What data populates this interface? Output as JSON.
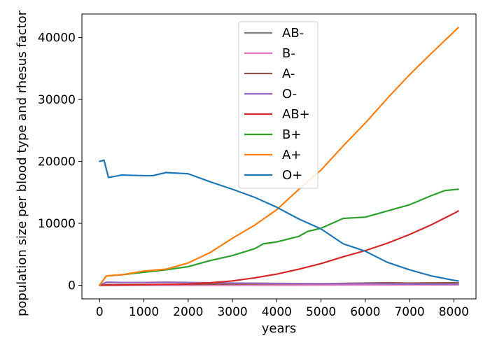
{
  "chart_data": {
    "type": "line",
    "title": "",
    "xlabel": "years",
    "ylabel": "population size per blood type and rhesus factor",
    "xlim": [
      -400,
      8500
    ],
    "ylim": [
      -2200,
      43800
    ],
    "xticks": [
      0,
      1000,
      2000,
      3000,
      4000,
      5000,
      6000,
      7000,
      8000
    ],
    "yticks": [
      0,
      10000,
      20000,
      30000,
      40000
    ],
    "legend_position": "upper center",
    "grid": false,
    "series": [
      {
        "name": "AB-",
        "color": "#7f7f7f",
        "x": [
          0,
          2000,
          4000,
          6000,
          8100
        ],
        "y": [
          0,
          20,
          50,
          80,
          100
        ]
      },
      {
        "name": "B-",
        "color": "#e377c2",
        "x": [
          0,
          2000,
          4000,
          6000,
          8100
        ],
        "y": [
          0,
          10,
          30,
          60,
          80
        ]
      },
      {
        "name": "A-",
        "color": "#8c564b",
        "x": [
          0,
          150,
          1000,
          2000,
          3000,
          4000,
          5000,
          6000,
          6500,
          7000,
          7500,
          8100
        ],
        "y": [
          0,
          100,
          120,
          150,
          200,
          250,
          250,
          350,
          400,
          350,
          380,
          400
        ]
      },
      {
        "name": "O-",
        "color": "#9467bd",
        "x": [
          0,
          150,
          500,
          1000,
          1500,
          2000,
          3000,
          4000,
          5000,
          6000,
          7000,
          8100
        ],
        "y": [
          0,
          500,
          450,
          450,
          500,
          450,
          350,
          300,
          250,
          250,
          200,
          150
        ]
      },
      {
        "name": "AB+",
        "color": "#d62728",
        "x": [
          0,
          1000,
          2000,
          2500,
          3000,
          3500,
          4000,
          4500,
          5000,
          5500,
          6000,
          6500,
          7000,
          7500,
          8000,
          8100
        ],
        "y": [
          0,
          100,
          200,
          400,
          700,
          1200,
          1800,
          2600,
          3500,
          4600,
          5600,
          6800,
          8200,
          9800,
          11600,
          12000
        ]
      },
      {
        "name": "B+",
        "color": "#2ca02c",
        "x": [
          0,
          150,
          500,
          1000,
          1500,
          2000,
          2500,
          3000,
          3500,
          3700,
          4000,
          4500,
          4700,
          5000,
          5500,
          6000,
          6500,
          7000,
          7500,
          7800,
          8100
        ],
        "y": [
          0,
          1500,
          1700,
          2100,
          2500,
          3000,
          4000,
          4800,
          5900,
          6700,
          7000,
          7900,
          8700,
          9200,
          10800,
          11000,
          12000,
          13000,
          14500,
          15300,
          15500
        ]
      },
      {
        "name": "A+",
        "color": "#ff7f0e",
        "x": [
          0,
          150,
          500,
          1000,
          1500,
          2000,
          2500,
          3000,
          3500,
          4000,
          4500,
          5000,
          5500,
          6000,
          6500,
          7000,
          7500,
          8100
        ],
        "y": [
          0,
          1500,
          1700,
          2300,
          2600,
          3600,
          5300,
          7600,
          9700,
          12200,
          15500,
          18600,
          22500,
          26200,
          30200,
          34000,
          37500,
          41600
        ]
      },
      {
        "name": "O+",
        "color": "#1f77b4",
        "x": [
          0,
          100,
          200,
          500,
          1000,
          1200,
          1500,
          2000,
          2500,
          3000,
          3500,
          4000,
          4500,
          5000,
          5500,
          6000,
          6500,
          7000,
          7500,
          8000,
          8100
        ],
        "y": [
          20000,
          20200,
          17400,
          17800,
          17700,
          17700,
          18200,
          18000,
          16700,
          15500,
          14200,
          12600,
          10700,
          9100,
          6700,
          5500,
          3700,
          2500,
          1500,
          800,
          700
        ]
      }
    ]
  }
}
